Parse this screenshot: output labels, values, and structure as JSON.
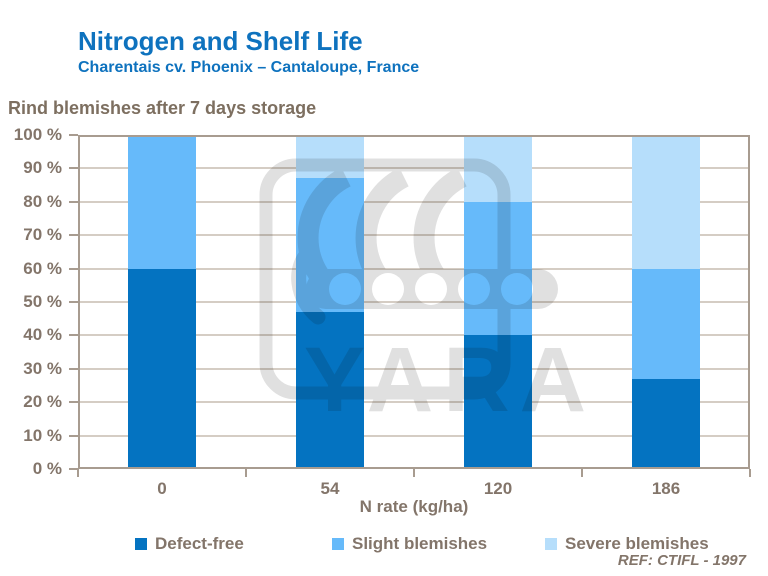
{
  "header": {
    "title": "Nitrogen and Shelf Life",
    "subtitle": "Charentais cv. Phoenix – Cantaloupe, France"
  },
  "section_heading": "Rind blemishes after 7 days storage",
  "footnote": "REF: CTIFL - 1997",
  "watermark": {
    "text": "YARA"
  },
  "colors": {
    "title_blue": "#0e72be",
    "label_brown": "#83756a",
    "axis_frame": "#a89c90",
    "gridline": "#d5cdc4"
  },
  "chart_data": {
    "type": "bar",
    "stacked": true,
    "title": "Rind blemishes after 7 days storage",
    "categories": [
      "0",
      "54",
      "120",
      "186"
    ],
    "series": [
      {
        "name": "Defect-free",
        "color": "#0473c1",
        "values": [
          60,
          47,
          40,
          27
        ]
      },
      {
        "name": "Slight blemishes",
        "color": "#66bafa",
        "values": [
          40,
          40,
          40,
          33
        ]
      },
      {
        "name": "Severe blemishes",
        "color": "#b6defb",
        "values": [
          0,
          13,
          20,
          40
        ]
      }
    ],
    "xlabel": "N rate (kg/ha)",
    "ylabel": "",
    "ylim": [
      0,
      100
    ],
    "y_ticks": [
      "100 %",
      "90 %",
      "80 %",
      "70 %",
      "60 %",
      "50 %",
      "40 %",
      "30 %",
      "20 %",
      "10 %",
      "0 %"
    ],
    "grid": true,
    "legend_position": "bottom"
  }
}
